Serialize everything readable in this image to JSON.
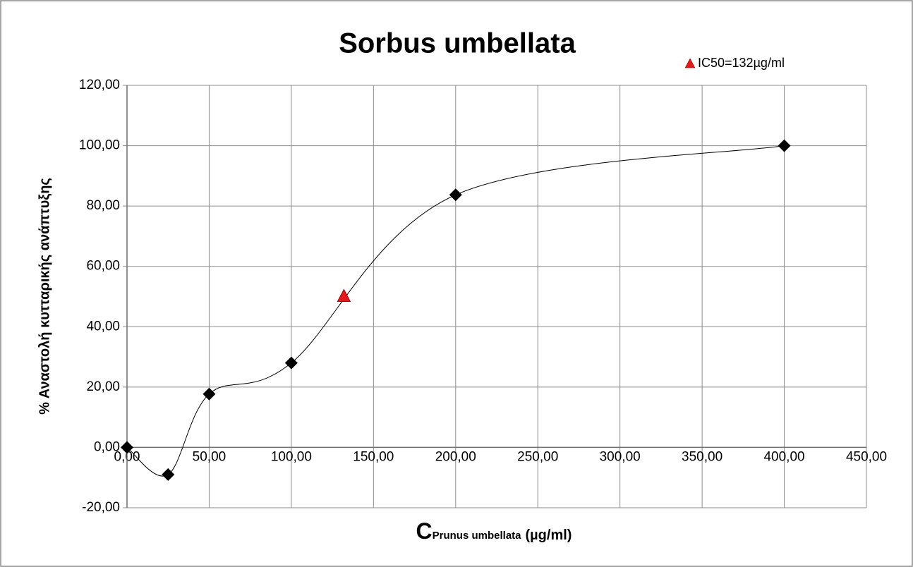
{
  "chart_data": {
    "type": "scatter",
    "title": "Sorbus umbellata",
    "y_label": "% Αναστολή κυτταρικής ανάπτυξης",
    "x_label": {
      "main": "C",
      "sub": "Prunus umbellata",
      "unit": "(µg/ml)"
    },
    "series": [
      {
        "color": "#000000",
        "marker": "diamond",
        "smooth": true,
        "x": [
          0,
          25,
          50,
          100,
          200,
          400
        ],
        "values": [
          0,
          -9,
          17.7,
          28,
          83.7,
          100
        ]
      },
      {
        "name": "IC50=132µg/ml",
        "color": "#e31a1c",
        "marker": "triangle",
        "x": [
          132
        ],
        "values": [
          50
        ]
      }
    ],
    "xlim": [
      0,
      450
    ],
    "xticks": [
      {
        "value": 0,
        "label": "0,00"
      },
      {
        "value": 50,
        "label": "50,00"
      },
      {
        "value": 100,
        "label": "100,00"
      },
      {
        "value": 150,
        "label": "150,00"
      },
      {
        "value": 200,
        "label": "200,00"
      },
      {
        "value": 250,
        "label": "250,00"
      },
      {
        "value": 300,
        "label": "300,00"
      },
      {
        "value": 350,
        "label": "350,00"
      },
      {
        "value": 400,
        "label": "400,00"
      },
      {
        "value": 450,
        "label": "450,00"
      }
    ],
    "ylim": [
      -20,
      120
    ],
    "yticks": [
      {
        "value": -20,
        "label": "-20,00"
      },
      {
        "value": 0,
        "label": "0,00"
      },
      {
        "value": 20,
        "label": "20,00"
      },
      {
        "value": 40,
        "label": "40,00"
      },
      {
        "value": 60,
        "label": "60,00"
      },
      {
        "value": 80,
        "label": "80,00"
      },
      {
        "value": 100,
        "label": "100,00"
      },
      {
        "value": 120,
        "label": "120,00"
      }
    ],
    "grid": true,
    "legend": "top-right"
  }
}
